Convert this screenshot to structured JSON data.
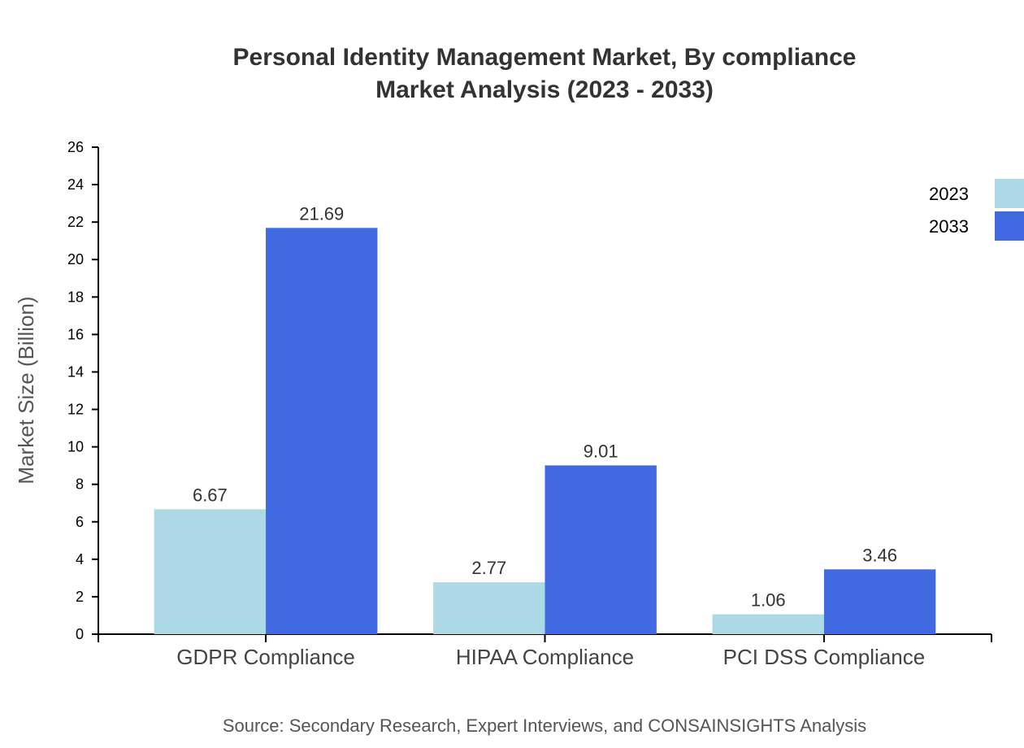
{
  "chart_data": {
    "type": "bar",
    "title": "Personal Identity Management Market, By compliance",
    "subtitle": "Market Analysis (2023 - 2033)",
    "xlabel": "",
    "ylabel": "Market Size (Billion)",
    "ylim": [
      0,
      26
    ],
    "yticks": [
      0,
      2,
      4,
      6,
      8,
      10,
      12,
      14,
      16,
      18,
      20,
      22,
      24,
      26
    ],
    "grid": false,
    "legend_placement": "top-right",
    "categories": [
      "GDPR Compliance",
      "HIPAA Compliance",
      "PCI DSS Compliance"
    ],
    "series": [
      {
        "name": "2023",
        "color": "#ADD8E6",
        "values": [
          6.67,
          2.77,
          1.06
        ]
      },
      {
        "name": "2033",
        "color": "#4169E1",
        "values": [
          21.69,
          9.01,
          3.46
        ]
      }
    ],
    "source": "Source: Secondary Research, Expert Interviews, and CONSAINSIGHTS Analysis"
  }
}
